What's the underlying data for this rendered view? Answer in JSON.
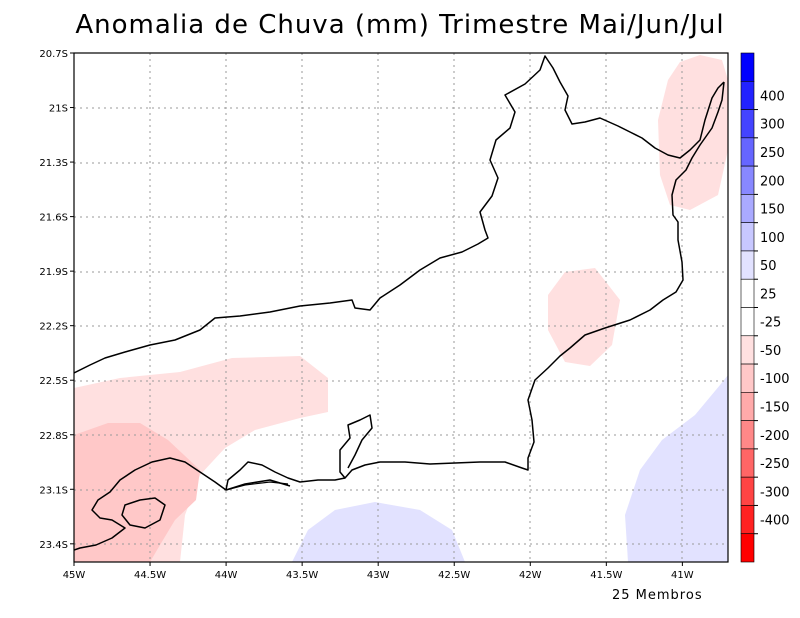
{
  "title": "Anomalia de Chuva (mm) Trimestre Mai/Jun/Jul",
  "footer": "25 Membros",
  "map": {
    "lon_range": [
      -45.0,
      -40.7
    ],
    "lat_range": [
      -23.5,
      -20.7
    ],
    "lon_ticks": [
      {
        "value": -45.0,
        "label": "45W"
      },
      {
        "value": -44.5,
        "label": "44.5W"
      },
      {
        "value": -44.0,
        "label": "44W"
      },
      {
        "value": -43.5,
        "label": "43.5W"
      },
      {
        "value": -43.0,
        "label": "43W"
      },
      {
        "value": -42.5,
        "label": "42.5W"
      },
      {
        "value": -42.0,
        "label": "42W"
      },
      {
        "value": -41.5,
        "label": "41.5W"
      },
      {
        "value": -41.0,
        "label": "41W"
      }
    ],
    "lat_ticks": [
      {
        "value": -20.7,
        "label": "20.7S"
      },
      {
        "value": -21.0,
        "label": "21S"
      },
      {
        "value": -21.3,
        "label": "21.3S"
      },
      {
        "value": -21.6,
        "label": "21.6S"
      },
      {
        "value": -21.9,
        "label": "21.9S"
      },
      {
        "value": -22.2,
        "label": "22.2S"
      },
      {
        "value": -22.5,
        "label": "22.5S"
      },
      {
        "value": -22.8,
        "label": "22.8S"
      },
      {
        "value": -23.1,
        "label": "23.1S"
      },
      {
        "value": -23.4,
        "label": "23.4S"
      }
    ]
  },
  "colorbar": {
    "bins": [
      {
        "color": "#0000ff"
      },
      {
        "color": "#2222ff"
      },
      {
        "color": "#4444ff"
      },
      {
        "color": "#6666ff"
      },
      {
        "color": "#8888ff"
      },
      {
        "color": "#aaaaff"
      },
      {
        "color": "#c8c8ff"
      },
      {
        "color": "#e2e2ff"
      },
      {
        "color": "#ffffff"
      },
      {
        "color": "#ffffff"
      },
      {
        "color": "#ffe0e0"
      },
      {
        "color": "#ffc8c8"
      },
      {
        "color": "#ffaaaa"
      },
      {
        "color": "#ff8888"
      },
      {
        "color": "#ff6666"
      },
      {
        "color": "#ff4444"
      },
      {
        "color": "#ff2222"
      },
      {
        "color": "#ff0000"
      }
    ],
    "labels": [
      "400",
      "300",
      "250",
      "200",
      "150",
      "100",
      "50",
      "25",
      "-25",
      "-50",
      "-100",
      "-150",
      "-200",
      "-250",
      "-300",
      "-400"
    ]
  },
  "anomaly_colors": {
    "light_pink": "#ffe0e0",
    "pink": "#ffc8c8",
    "light_blue": "#e2e2ff"
  }
}
